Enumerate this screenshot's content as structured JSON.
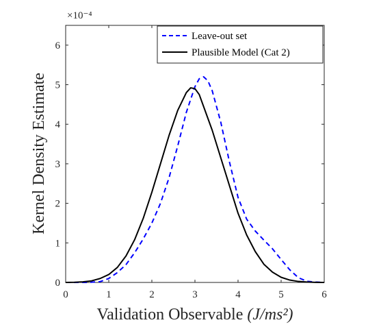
{
  "chart_data": {
    "type": "line",
    "title": "",
    "xlabel": "Validation Observable",
    "xlabel_units": "(J/ms²)",
    "ylabel": "Kernel Density Estimate",
    "exponent_label": "×10⁻⁴",
    "xlim": [
      0,
      6
    ],
    "ylim": [
      0,
      6.5
    ],
    "xticks": [
      0,
      1,
      2,
      3,
      4,
      5,
      6
    ],
    "yticks": [
      0,
      1,
      2,
      3,
      4,
      5,
      6
    ],
    "grid": false,
    "legend_position": "top-right",
    "series": [
      {
        "name": "Leave-out set",
        "color": "#0000ff",
        "style": "dashed",
        "x": [
          0,
          0.5,
          0.8,
          1.0,
          1.2,
          1.4,
          1.6,
          1.8,
          2.0,
          2.2,
          2.4,
          2.6,
          2.8,
          3.0,
          3.1,
          3.2,
          3.3,
          3.4,
          3.6,
          3.8,
          4.0,
          4.2,
          4.4,
          4.6,
          4.8,
          5.0,
          5.2,
          5.4,
          5.6,
          5.8,
          6.0
        ],
        "y": [
          0,
          0,
          0.02,
          0.1,
          0.25,
          0.45,
          0.75,
          1.1,
          1.5,
          2.0,
          2.65,
          3.45,
          4.3,
          4.95,
          5.15,
          5.2,
          5.1,
          4.85,
          4.05,
          3.05,
          2.15,
          1.6,
          1.3,
          1.07,
          0.85,
          0.58,
          0.32,
          0.12,
          0.03,
          0.01,
          0
        ]
      },
      {
        "name": "Plausible Model (Cat 2)",
        "color": "#000000",
        "style": "solid",
        "x": [
          0,
          0.2,
          0.4,
          0.6,
          0.8,
          1.0,
          1.2,
          1.4,
          1.6,
          1.8,
          2.0,
          2.2,
          2.4,
          2.6,
          2.8,
          2.9,
          3.0,
          3.1,
          3.2,
          3.4,
          3.6,
          3.8,
          4.0,
          4.2,
          4.4,
          4.6,
          4.8,
          5.0,
          5.2,
          5.4,
          5.6,
          5.8,
          6.0
        ],
        "y": [
          0,
          0.005,
          0.015,
          0.04,
          0.1,
          0.2,
          0.38,
          0.67,
          1.08,
          1.62,
          2.28,
          3.0,
          3.72,
          4.35,
          4.8,
          4.92,
          4.9,
          4.75,
          4.45,
          3.85,
          3.15,
          2.45,
          1.75,
          1.2,
          0.78,
          0.46,
          0.26,
          0.13,
          0.06,
          0.025,
          0.01,
          0.003,
          0
        ]
      }
    ]
  }
}
